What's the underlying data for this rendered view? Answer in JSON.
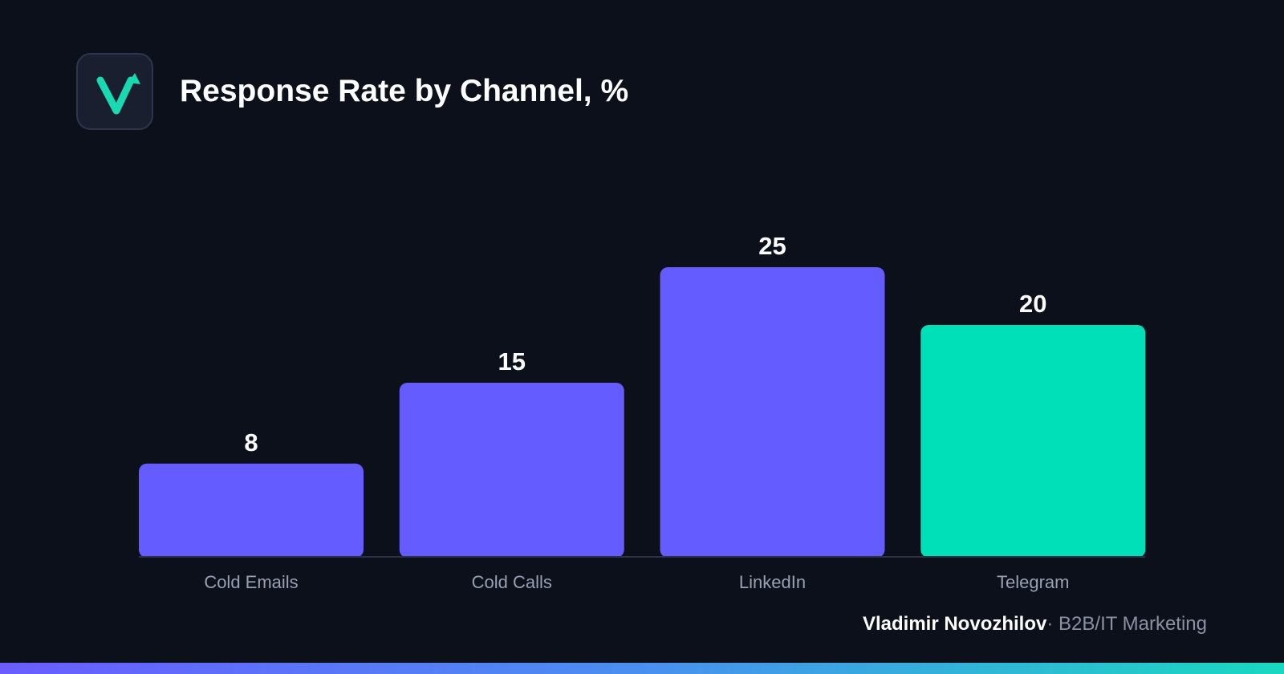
{
  "logo": {
    "icon": "checkmark-arrow-icon",
    "letter": "V"
  },
  "colors": {
    "background": "#0c101b",
    "bar_primary": "#655cff",
    "bar_highlight": "#00e0b8",
    "axis_line": "#2c3147",
    "tick_label": "#9aa0b4",
    "value_label": "#ffffff",
    "logo_accent": "#18d9b2"
  },
  "footer": {
    "author": "Vladimir Novozhilov",
    "separator": "·",
    "tagline": "B2B/IT Marketing"
  },
  "chart_data": {
    "type": "bar",
    "title": "Response Rate by Channel, %",
    "xlabel": "",
    "ylabel": "",
    "categories": [
      "Cold Emails",
      "Cold Calls",
      "LinkedIn",
      "Telegram"
    ],
    "values": [
      8,
      15,
      25,
      20
    ],
    "highlight_index": 3,
    "ylim": [
      0,
      25
    ],
    "grid": false,
    "legend": "none",
    "data_labels": true
  }
}
